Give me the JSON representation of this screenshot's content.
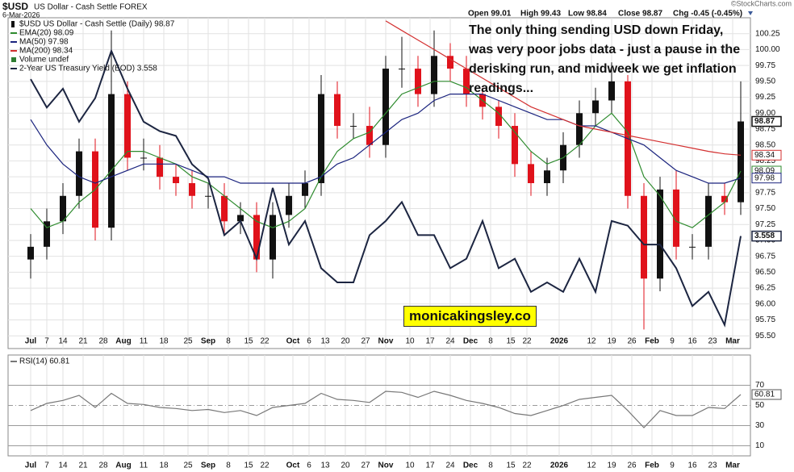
{
  "chart_data": [
    {
      "type": "candlestick",
      "title": "$USD",
      "subtitle": "US Dollar - Cash Settle FOREX",
      "date": "6-Mar-2026",
      "quote": [
        "Open 99.01",
        "High 99.43",
        "Low 98.84",
        "Close 98.87",
        "Chg -0.45 (-0.45%)"
      ],
      "credit": "©StockCharts.com",
      "annotation": "The only thing sending USD down Friday, was very poor jobs data - just a pause in the derisking run, and midweek we get inflation readings...",
      "watermark": "monicakingsley.co",
      "grid": true,
      "xlim": [
        -5.6,
        178.4
      ],
      "ylim": [
        95.3,
        100.5
      ],
      "y2lim": [
        3.32,
        4.02
      ],
      "xticks": [
        {
          "value": 0,
          "label": "Jul"
        },
        {
          "value": 4,
          "label": "7"
        },
        {
          "value": 8,
          "label": "14"
        },
        {
          "value": 13,
          "label": "21"
        },
        {
          "value": 18,
          "label": "28"
        },
        {
          "value": 23,
          "label": "Aug"
        },
        {
          "value": 28,
          "label": "11"
        },
        {
          "value": 33,
          "label": "18"
        },
        {
          "value": 39,
          "label": "25"
        },
        {
          "value": 44,
          "label": "Sep"
        },
        {
          "value": 49,
          "label": "8"
        },
        {
          "value": 54,
          "label": "15"
        },
        {
          "value": 58,
          "label": "22"
        },
        {
          "value": 65,
          "label": "Oct"
        },
        {
          "value": 69,
          "label": "6"
        },
        {
          "value": 73,
          "label": "13"
        },
        {
          "value": 78,
          "label": "20"
        },
        {
          "value": 83,
          "label": "27"
        },
        {
          "value": 88,
          "label": "Nov"
        },
        {
          "value": 94,
          "label": "10"
        },
        {
          "value": 99,
          "label": "17"
        },
        {
          "value": 104,
          "label": "24"
        },
        {
          "value": 109,
          "label": "Dec"
        },
        {
          "value": 114,
          "label": "8"
        },
        {
          "value": 119,
          "label": "15"
        },
        {
          "value": 123,
          "label": "22"
        },
        {
          "value": 131,
          "label": "2026"
        },
        {
          "value": 139,
          "label": "12"
        },
        {
          "value": 144,
          "label": "19"
        },
        {
          "value": 149,
          "label": "26"
        },
        {
          "value": 154,
          "label": "Feb"
        },
        {
          "value": 159,
          "label": "9"
        },
        {
          "value": 164,
          "label": "16"
        },
        {
          "value": 169,
          "label": "23"
        },
        {
          "value": 174,
          "label": "Mar"
        }
      ],
      "yticks": [
        {
          "value": 95.5,
          "label": "95.50"
        },
        95.75,
        {
          "value": 96,
          "label": "96.00"
        },
        96.25,
        {
          "value": 96.5,
          "label": "96.50"
        },
        96.75,
        {
          "value": 97,
          "label": "97.00"
        },
        97.25,
        {
          "value": 97.5,
          "label": "97.50"
        },
        97.75,
        {
          "value": 98,
          "label": "98.00"
        },
        98.25,
        {
          "value": 98.5,
          "label": "98.50"
        },
        98.75,
        {
          "value": 99,
          "label": "99.00"
        },
        99.25,
        {
          "value": 99.5,
          "label": "99.50"
        },
        99.75,
        {
          "value": 100,
          "label": "100.00"
        },
        100.25
      ],
      "x": [
        0,
        4,
        8,
        12,
        16,
        20,
        24,
        28,
        32,
        36,
        40,
        44,
        48,
        52,
        56,
        60,
        64,
        68,
        72,
        76,
        80,
        84,
        88,
        92,
        96,
        100,
        104,
        108,
        112,
        116,
        120,
        124,
        128,
        132,
        136,
        140,
        144,
        148,
        152,
        156,
        160,
        164,
        168,
        172,
        176
      ],
      "candles": {
        "name": "$USD US Dollar - Cash Settle (Daily) 98.87",
        "up_color": "#111111",
        "down_color": "#e0121b",
        "open": [
          96.7,
          96.9,
          97.3,
          97.7,
          98.4,
          97.2,
          99.3,
          98.3,
          98.3,
          98.0,
          97.9,
          97.7,
          97.7,
          97.3,
          97.4,
          96.7,
          97.4,
          97.7,
          97.9,
          99.3,
          98.8,
          98.8,
          98.5,
          99.7,
          99.7,
          99.3,
          99.9,
          99.7,
          99.3,
          99.1,
          98.8,
          98.2,
          97.9,
          98.1,
          98.5,
          99.0,
          99.2,
          99.5,
          97.7,
          96.4,
          97.8,
          96.9,
          96.9,
          97.7,
          97.6
        ],
        "high": [
          97.1,
          97.5,
          97.9,
          98.6,
          98.6,
          100.3,
          99.5,
          98.6,
          98.5,
          98.2,
          98.1,
          97.9,
          97.9,
          97.6,
          97.6,
          97.6,
          97.9,
          98.1,
          99.6,
          99.5,
          99.0,
          99.1,
          99.9,
          100.2,
          99.9,
          100.3,
          100.1,
          99.9,
          99.4,
          99.2,
          99.0,
          98.4,
          98.3,
          98.7,
          99.2,
          99.4,
          99.8,
          99.6,
          97.9,
          98.0,
          98.1,
          97.1,
          97.9,
          97.9,
          99.5
        ],
        "low": [
          96.4,
          96.7,
          97.1,
          97.5,
          97.0,
          97.0,
          98.1,
          98.1,
          97.8,
          97.7,
          97.5,
          97.5,
          97.1,
          97.1,
          96.5,
          96.4,
          97.2,
          97.5,
          97.7,
          98.6,
          98.6,
          98.3,
          98.3,
          99.4,
          99.1,
          99.1,
          99.5,
          99.1,
          98.9,
          98.6,
          98.0,
          97.7,
          97.7,
          97.9,
          98.3,
          98.8,
          99.0,
          97.5,
          95.6,
          96.2,
          96.7,
          96.7,
          96.7,
          97.4,
          97.4
        ],
        "close": [
          96.9,
          97.3,
          97.7,
          98.4,
          97.2,
          99.3,
          98.3,
          98.3,
          98.0,
          97.9,
          97.7,
          97.7,
          97.3,
          97.4,
          96.7,
          97.4,
          97.7,
          97.9,
          99.3,
          98.8,
          98.8,
          98.5,
          99.7,
          99.7,
          99.3,
          99.9,
          99.7,
          99.3,
          99.1,
          98.8,
          98.2,
          97.9,
          98.1,
          98.5,
          99.0,
          99.2,
          99.5,
          97.7,
          96.4,
          97.8,
          96.9,
          96.9,
          97.7,
          97.6,
          98.87
        ]
      },
      "legend_notes": [
        {
          "name": "Volume undef",
          "color": "#2e7d32"
        }
      ],
      "series": [
        {
          "name": "EMA(20) 98.09",
          "color": "#2e8b2e",
          "values": [
            97.5,
            97.2,
            97.3,
            97.6,
            97.8,
            98.1,
            98.4,
            98.4,
            98.3,
            98.2,
            98.0,
            97.9,
            97.7,
            97.5,
            97.3,
            97.2,
            97.3,
            97.5,
            98.0,
            98.4,
            98.6,
            98.7,
            99.0,
            99.3,
            99.4,
            99.5,
            99.5,
            99.4,
            99.2,
            99.0,
            98.7,
            98.4,
            98.2,
            98.3,
            98.5,
            98.8,
            99.0,
            98.7,
            98.0,
            97.7,
            97.3,
            97.2,
            97.4,
            97.6,
            98.09
          ]
        },
        {
          "name": "MA(50) 97.98",
          "color": "#1a237e",
          "values": [
            98.9,
            98.5,
            98.2,
            98.0,
            97.9,
            98.0,
            98.1,
            98.2,
            98.2,
            98.2,
            98.1,
            98.0,
            98.0,
            97.9,
            97.9,
            97.9,
            97.9,
            97.9,
            98.0,
            98.2,
            98.3,
            98.5,
            98.7,
            98.9,
            99.0,
            99.2,
            99.3,
            99.3,
            99.3,
            99.2,
            99.1,
            99.0,
            98.9,
            98.9,
            98.8,
            98.8,
            98.7,
            98.6,
            98.5,
            98.3,
            98.1,
            98.0,
            97.9,
            97.9,
            97.98
          ]
        },
        {
          "name": "MA(200) 98.34",
          "color": "#d32f2f",
          "values": [
            null,
            null,
            null,
            null,
            null,
            null,
            null,
            null,
            null,
            null,
            null,
            null,
            null,
            null,
            null,
            null,
            null,
            null,
            null,
            null,
            null,
            null,
            100.45,
            100.3,
            100.15,
            100.0,
            99.85,
            99.7,
            99.55,
            99.4,
            99.25,
            99.1,
            99.0,
            98.9,
            98.8,
            98.75,
            98.7,
            98.65,
            98.6,
            98.55,
            98.5,
            98.45,
            98.4,
            98.36,
            98.34
          ]
        },
        {
          "name": "2-Year US Treasury Yield (EOD) 3.558",
          "color": "#1c2541",
          "axis": "y2",
          "values": [
            3.89,
            3.83,
            3.87,
            3.8,
            3.85,
            3.95,
            3.87,
            3.8,
            3.78,
            3.77,
            3.71,
            3.68,
            3.56,
            3.59,
            3.51,
            3.66,
            3.54,
            3.59,
            3.49,
            3.46,
            3.46,
            3.56,
            3.59,
            3.63,
            3.56,
            3.56,
            3.49,
            3.51,
            3.59,
            3.49,
            3.51,
            3.44,
            3.46,
            3.44,
            3.51,
            3.44,
            3.59,
            3.58,
            3.54,
            3.54,
            3.49,
            3.41,
            3.44,
            3.37,
            3.558
          ]
        }
      ]
    },
    {
      "type": "line",
      "title": "RSI(14) 60.81",
      "color": "#777777",
      "grid": true,
      "xlim": [
        -5.6,
        178.4
      ],
      "ylim": [
        0,
        100
      ],
      "yticks": [
        10,
        30,
        50,
        70
      ],
      "xticks": [
        {
          "value": 0,
          "label": "Jul"
        },
        {
          "value": 4,
          "label": "7"
        },
        {
          "value": 8,
          "label": "14"
        },
        {
          "value": 13,
          "label": "21"
        },
        {
          "value": 18,
          "label": "28"
        },
        {
          "value": 23,
          "label": "Aug"
        },
        {
          "value": 28,
          "label": "11"
        },
        {
          "value": 33,
          "label": "18"
        },
        {
          "value": 39,
          "label": "25"
        },
        {
          "value": 44,
          "label": "Sep"
        },
        {
          "value": 49,
          "label": "8"
        },
        {
          "value": 54,
          "label": "15"
        },
        {
          "value": 58,
          "label": "22"
        },
        {
          "value": 65,
          "label": "Oct"
        },
        {
          "value": 69,
          "label": "6"
        },
        {
          "value": 73,
          "label": "13"
        },
        {
          "value": 78,
          "label": "20"
        },
        {
          "value": 83,
          "label": "27"
        },
        {
          "value": 88,
          "label": "Nov"
        },
        {
          "value": 94,
          "label": "10"
        },
        {
          "value": 99,
          "label": "17"
        },
        {
          "value": 104,
          "label": "24"
        },
        {
          "value": 109,
          "label": "Dec"
        },
        {
          "value": 114,
          "label": "8"
        },
        {
          "value": 119,
          "label": "15"
        },
        {
          "value": 123,
          "label": "22"
        },
        {
          "value": 131,
          "label": "2026"
        },
        {
          "value": 139,
          "label": "12"
        },
        {
          "value": 144,
          "label": "19"
        },
        {
          "value": 149,
          "label": "26"
        },
        {
          "value": 154,
          "label": "Feb"
        },
        {
          "value": 159,
          "label": "9"
        },
        {
          "value": 164,
          "label": "16"
        },
        {
          "value": 169,
          "label": "23"
        },
        {
          "value": 174,
          "label": "Mar"
        }
      ],
      "x": [
        0,
        4,
        8,
        12,
        16,
        20,
        24,
        28,
        32,
        36,
        40,
        44,
        48,
        52,
        56,
        60,
        64,
        68,
        72,
        76,
        80,
        84,
        88,
        92,
        96,
        100,
        104,
        108,
        112,
        116,
        120,
        124,
        128,
        132,
        136,
        140,
        144,
        148,
        152,
        156,
        160,
        164,
        168,
        172,
        176
      ],
      "values": [
        45,
        52,
        55,
        60,
        48,
        62,
        52,
        51,
        48,
        47,
        45,
        46,
        43,
        45,
        40,
        48,
        50,
        52,
        62,
        56,
        55,
        53,
        64,
        63,
        58,
        64,
        60,
        55,
        52,
        48,
        42,
        40,
        45,
        50,
        56,
        58,
        60,
        45,
        28,
        45,
        40,
        40,
        48,
        47,
        60.81
      ]
    }
  ]
}
